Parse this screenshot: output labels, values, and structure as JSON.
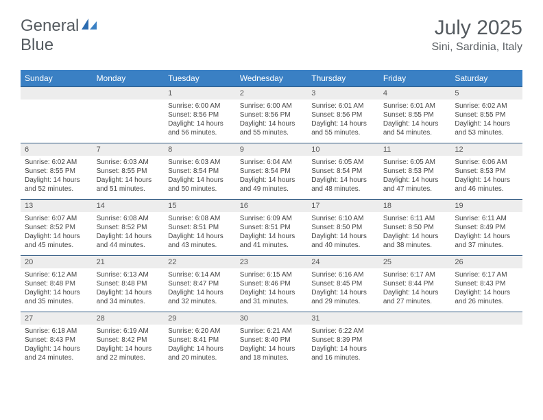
{
  "logo": {
    "general": "General",
    "blue": "Blue"
  },
  "title": "July 2025",
  "location": "Sini, Sardinia, Italy",
  "header_bg": "#3a80c4",
  "row_border": "#2c5680",
  "daynum_bg": "#ededed",
  "columns": [
    "Sunday",
    "Monday",
    "Tuesday",
    "Wednesday",
    "Thursday",
    "Friday",
    "Saturday"
  ],
  "weeks": [
    [
      {
        "num": "",
        "sunrise": "",
        "sunset": "",
        "daylight": ""
      },
      {
        "num": "",
        "sunrise": "",
        "sunset": "",
        "daylight": ""
      },
      {
        "num": "1",
        "sunrise": "Sunrise: 6:00 AM",
        "sunset": "Sunset: 8:56 PM",
        "daylight": "Daylight: 14 hours and 56 minutes."
      },
      {
        "num": "2",
        "sunrise": "Sunrise: 6:00 AM",
        "sunset": "Sunset: 8:56 PM",
        "daylight": "Daylight: 14 hours and 55 minutes."
      },
      {
        "num": "3",
        "sunrise": "Sunrise: 6:01 AM",
        "sunset": "Sunset: 8:56 PM",
        "daylight": "Daylight: 14 hours and 55 minutes."
      },
      {
        "num": "4",
        "sunrise": "Sunrise: 6:01 AM",
        "sunset": "Sunset: 8:55 PM",
        "daylight": "Daylight: 14 hours and 54 minutes."
      },
      {
        "num": "5",
        "sunrise": "Sunrise: 6:02 AM",
        "sunset": "Sunset: 8:55 PM",
        "daylight": "Daylight: 14 hours and 53 minutes."
      }
    ],
    [
      {
        "num": "6",
        "sunrise": "Sunrise: 6:02 AM",
        "sunset": "Sunset: 8:55 PM",
        "daylight": "Daylight: 14 hours and 52 minutes."
      },
      {
        "num": "7",
        "sunrise": "Sunrise: 6:03 AM",
        "sunset": "Sunset: 8:55 PM",
        "daylight": "Daylight: 14 hours and 51 minutes."
      },
      {
        "num": "8",
        "sunrise": "Sunrise: 6:03 AM",
        "sunset": "Sunset: 8:54 PM",
        "daylight": "Daylight: 14 hours and 50 minutes."
      },
      {
        "num": "9",
        "sunrise": "Sunrise: 6:04 AM",
        "sunset": "Sunset: 8:54 PM",
        "daylight": "Daylight: 14 hours and 49 minutes."
      },
      {
        "num": "10",
        "sunrise": "Sunrise: 6:05 AM",
        "sunset": "Sunset: 8:54 PM",
        "daylight": "Daylight: 14 hours and 48 minutes."
      },
      {
        "num": "11",
        "sunrise": "Sunrise: 6:05 AM",
        "sunset": "Sunset: 8:53 PM",
        "daylight": "Daylight: 14 hours and 47 minutes."
      },
      {
        "num": "12",
        "sunrise": "Sunrise: 6:06 AM",
        "sunset": "Sunset: 8:53 PM",
        "daylight": "Daylight: 14 hours and 46 minutes."
      }
    ],
    [
      {
        "num": "13",
        "sunrise": "Sunrise: 6:07 AM",
        "sunset": "Sunset: 8:52 PM",
        "daylight": "Daylight: 14 hours and 45 minutes."
      },
      {
        "num": "14",
        "sunrise": "Sunrise: 6:08 AM",
        "sunset": "Sunset: 8:52 PM",
        "daylight": "Daylight: 14 hours and 44 minutes."
      },
      {
        "num": "15",
        "sunrise": "Sunrise: 6:08 AM",
        "sunset": "Sunset: 8:51 PM",
        "daylight": "Daylight: 14 hours and 43 minutes."
      },
      {
        "num": "16",
        "sunrise": "Sunrise: 6:09 AM",
        "sunset": "Sunset: 8:51 PM",
        "daylight": "Daylight: 14 hours and 41 minutes."
      },
      {
        "num": "17",
        "sunrise": "Sunrise: 6:10 AM",
        "sunset": "Sunset: 8:50 PM",
        "daylight": "Daylight: 14 hours and 40 minutes."
      },
      {
        "num": "18",
        "sunrise": "Sunrise: 6:11 AM",
        "sunset": "Sunset: 8:50 PM",
        "daylight": "Daylight: 14 hours and 38 minutes."
      },
      {
        "num": "19",
        "sunrise": "Sunrise: 6:11 AM",
        "sunset": "Sunset: 8:49 PM",
        "daylight": "Daylight: 14 hours and 37 minutes."
      }
    ],
    [
      {
        "num": "20",
        "sunrise": "Sunrise: 6:12 AM",
        "sunset": "Sunset: 8:48 PM",
        "daylight": "Daylight: 14 hours and 35 minutes."
      },
      {
        "num": "21",
        "sunrise": "Sunrise: 6:13 AM",
        "sunset": "Sunset: 8:48 PM",
        "daylight": "Daylight: 14 hours and 34 minutes."
      },
      {
        "num": "22",
        "sunrise": "Sunrise: 6:14 AM",
        "sunset": "Sunset: 8:47 PM",
        "daylight": "Daylight: 14 hours and 32 minutes."
      },
      {
        "num": "23",
        "sunrise": "Sunrise: 6:15 AM",
        "sunset": "Sunset: 8:46 PM",
        "daylight": "Daylight: 14 hours and 31 minutes."
      },
      {
        "num": "24",
        "sunrise": "Sunrise: 6:16 AM",
        "sunset": "Sunset: 8:45 PM",
        "daylight": "Daylight: 14 hours and 29 minutes."
      },
      {
        "num": "25",
        "sunrise": "Sunrise: 6:17 AM",
        "sunset": "Sunset: 8:44 PM",
        "daylight": "Daylight: 14 hours and 27 minutes."
      },
      {
        "num": "26",
        "sunrise": "Sunrise: 6:17 AM",
        "sunset": "Sunset: 8:43 PM",
        "daylight": "Daylight: 14 hours and 26 minutes."
      }
    ],
    [
      {
        "num": "27",
        "sunrise": "Sunrise: 6:18 AM",
        "sunset": "Sunset: 8:43 PM",
        "daylight": "Daylight: 14 hours and 24 minutes."
      },
      {
        "num": "28",
        "sunrise": "Sunrise: 6:19 AM",
        "sunset": "Sunset: 8:42 PM",
        "daylight": "Daylight: 14 hours and 22 minutes."
      },
      {
        "num": "29",
        "sunrise": "Sunrise: 6:20 AM",
        "sunset": "Sunset: 8:41 PM",
        "daylight": "Daylight: 14 hours and 20 minutes."
      },
      {
        "num": "30",
        "sunrise": "Sunrise: 6:21 AM",
        "sunset": "Sunset: 8:40 PM",
        "daylight": "Daylight: 14 hours and 18 minutes."
      },
      {
        "num": "31",
        "sunrise": "Sunrise: 6:22 AM",
        "sunset": "Sunset: 8:39 PM",
        "daylight": "Daylight: 14 hours and 16 minutes."
      },
      {
        "num": "",
        "sunrise": "",
        "sunset": "",
        "daylight": ""
      },
      {
        "num": "",
        "sunrise": "",
        "sunset": "",
        "daylight": ""
      }
    ]
  ]
}
